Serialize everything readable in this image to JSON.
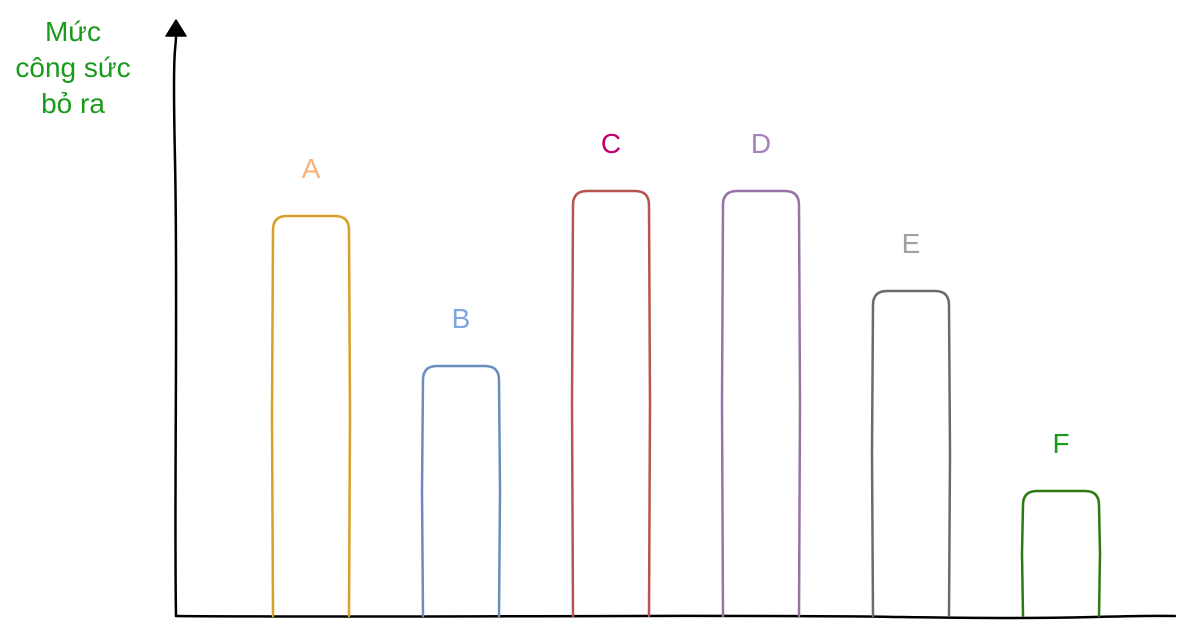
{
  "chart_data": {
    "type": "bar",
    "ylabel_lines": [
      "Mức",
      "công sức",
      "bỏ ra"
    ],
    "ylabel_color": "#1a9a1a",
    "axis_color": "#000000",
    "ylim": [
      0,
      100
    ],
    "grid": false,
    "series": [
      {
        "values": [
          80,
          50,
          85,
          85,
          65,
          25
        ],
        "point_labels": [
          "A",
          "B",
          "C",
          "D",
          "E",
          "F"
        ],
        "outline_colors": [
          "#d6a02a",
          "#6c8ebf",
          "#b85450",
          "#9673a6",
          "#6b6b6b",
          "#2d7a12"
        ],
        "label_colors": [
          "#f5b27a",
          "#7ea6e0",
          "#c0006a",
          "#a680b8",
          "#a0a0a0",
          "#1a9a1a"
        ]
      }
    ]
  }
}
